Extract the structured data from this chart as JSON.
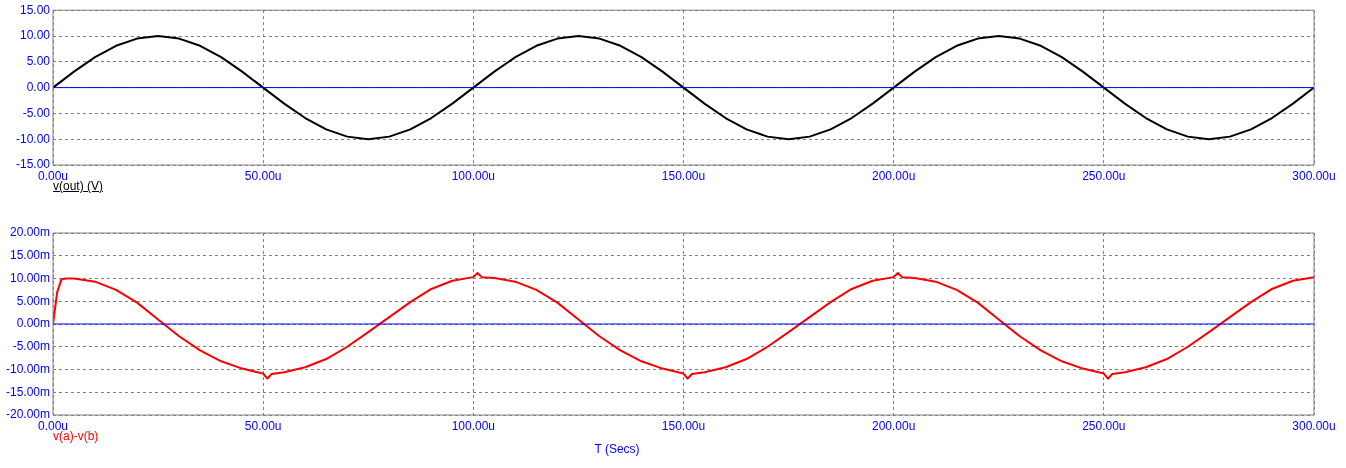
{
  "chart_data": [
    {
      "type": "line",
      "x": [
        0,
        5,
        10,
        15,
        20,
        25,
        30,
        35,
        40,
        45,
        50,
        55,
        60,
        65,
        70,
        75,
        80,
        85,
        90,
        95,
        100,
        105,
        110,
        115,
        120,
        125,
        130,
        135,
        140,
        145,
        150,
        155,
        160,
        165,
        170,
        175,
        180,
        185,
        190,
        195,
        200,
        205,
        210,
        215,
        220,
        225,
        230,
        235,
        240,
        245,
        250,
        255,
        260,
        265,
        270,
        275,
        280,
        285,
        290,
        295,
        300
      ],
      "series": [
        {
          "name": "v(out) (V)",
          "color": "#000000",
          "values": [
            0,
            3.1,
            5.9,
            8.1,
            9.5,
            10,
            9.5,
            8.1,
            5.9,
            3.1,
            0,
            -3.1,
            -5.9,
            -8.1,
            -9.5,
            -10,
            -9.5,
            -8.1,
            -5.9,
            -3.1,
            0,
            3.1,
            5.9,
            8.1,
            9.5,
            10,
            9.5,
            8.1,
            5.9,
            3.1,
            0,
            -3.1,
            -5.9,
            -8.1,
            -9.5,
            -10,
            -9.5,
            -8.1,
            -5.9,
            -3.1,
            0,
            3.1,
            5.9,
            8.1,
            9.5,
            10,
            9.5,
            8.1,
            5.9,
            3.1,
            0,
            -3.1,
            -5.9,
            -8.1,
            -9.5,
            -10,
            -9.5,
            -8.1,
            -5.9,
            -3.1,
            0
          ]
        }
      ],
      "xlim": [
        0,
        300
      ],
      "xticks": [
        {
          "value": 0,
          "label": "0.00u"
        },
        {
          "value": 50,
          "label": "50.00u"
        },
        {
          "value": 100,
          "label": "100.00u"
        },
        {
          "value": 150,
          "label": "150.00u"
        },
        {
          "value": 200,
          "label": "200.00u"
        },
        {
          "value": 250,
          "label": "250.00u"
        },
        {
          "value": 300,
          "label": "300.00u"
        }
      ],
      "ylim": [
        -15,
        15
      ],
      "yticks": [
        {
          "value": -15,
          "label": "-15.00"
        },
        {
          "value": -10,
          "label": "-10.00"
        },
        {
          "value": -5,
          "label": "-5.00"
        },
        {
          "value": 0,
          "label": "0.00"
        },
        {
          "value": 5,
          "label": "5.00"
        },
        {
          "value": 10,
          "label": "10.00"
        },
        {
          "value": 15,
          "label": "15.00"
        }
      ],
      "grid": true,
      "ref_lines": [
        {
          "axis": "y",
          "value": 0,
          "color": "#0000ff"
        }
      ]
    },
    {
      "type": "line",
      "x": [
        0,
        1,
        2,
        3,
        5,
        10,
        15,
        20,
        25,
        30,
        35,
        40,
        45,
        50,
        51,
        52,
        55,
        60,
        65,
        70,
        75,
        80,
        85,
        90,
        95,
        100,
        101,
        102,
        105,
        110,
        115,
        120,
        125,
        130,
        135,
        140,
        145,
        150,
        151,
        152,
        155,
        160,
        165,
        170,
        175,
        180,
        185,
        190,
        195,
        200,
        201,
        202,
        205,
        210,
        215,
        220,
        225,
        230,
        235,
        240,
        245,
        250,
        251,
        252,
        255,
        260,
        265,
        270,
        275,
        280,
        285,
        290,
        295,
        300
      ],
      "series": [
        {
          "name": "v(a)-v(b)",
          "color": "#ff0000",
          "values": [
            0,
            7,
            9.8,
            10,
            10,
            9.3,
            7.5,
            4.7,
            1,
            -2.7,
            -5.8,
            -8.2,
            -9.8,
            -10.9,
            -12,
            -11,
            -10.6,
            -9.5,
            -7.7,
            -5,
            -1.8,
            1.5,
            4.8,
            7.7,
            9.5,
            10.3,
            11.2,
            10.3,
            10.1,
            9.3,
            7.5,
            4.7,
            1,
            -2.7,
            -5.8,
            -8.2,
            -9.8,
            -10.9,
            -12,
            -11,
            -10.6,
            -9.5,
            -7.7,
            -5,
            -1.8,
            1.5,
            4.8,
            7.7,
            9.5,
            10.3,
            11.2,
            10.3,
            10.1,
            9.3,
            7.5,
            4.7,
            1,
            -2.7,
            -5.8,
            -8.2,
            -9.8,
            -10.9,
            -12,
            -11,
            -10.6,
            -9.5,
            -7.7,
            -5,
            -1.8,
            1.5,
            4.8,
            7.7,
            9.5,
            10.3
          ]
        }
      ],
      "xlabel": "T (Secs)",
      "xlim": [
        0,
        300
      ],
      "xticks": [
        {
          "value": 0,
          "label": "0.00u"
        },
        {
          "value": 50,
          "label": "50.00u"
        },
        {
          "value": 100,
          "label": "100.00u"
        },
        {
          "value": 150,
          "label": "150.00u"
        },
        {
          "value": 200,
          "label": "200.00u"
        },
        {
          "value": 250,
          "label": "250.00u"
        },
        {
          "value": 300,
          "label": "300.00u"
        }
      ],
      "ylim": [
        -20,
        20
      ],
      "yticks": [
        {
          "value": -20,
          "label": "-20.00m"
        },
        {
          "value": -15,
          "label": "-15.00m"
        },
        {
          "value": -10,
          "label": "-10.00m"
        },
        {
          "value": -5,
          "label": "-5.00m"
        },
        {
          "value": 0,
          "label": "0.00m"
        },
        {
          "value": 5,
          "label": "5.00m"
        },
        {
          "value": 10,
          "label": "10.00m"
        },
        {
          "value": 15,
          "label": "15.00m"
        },
        {
          "value": 20,
          "label": "20.00m"
        }
      ],
      "grid": true,
      "ref_lines": [
        {
          "axis": "y",
          "value": 0,
          "color": "#0000ff"
        }
      ]
    }
  ]
}
